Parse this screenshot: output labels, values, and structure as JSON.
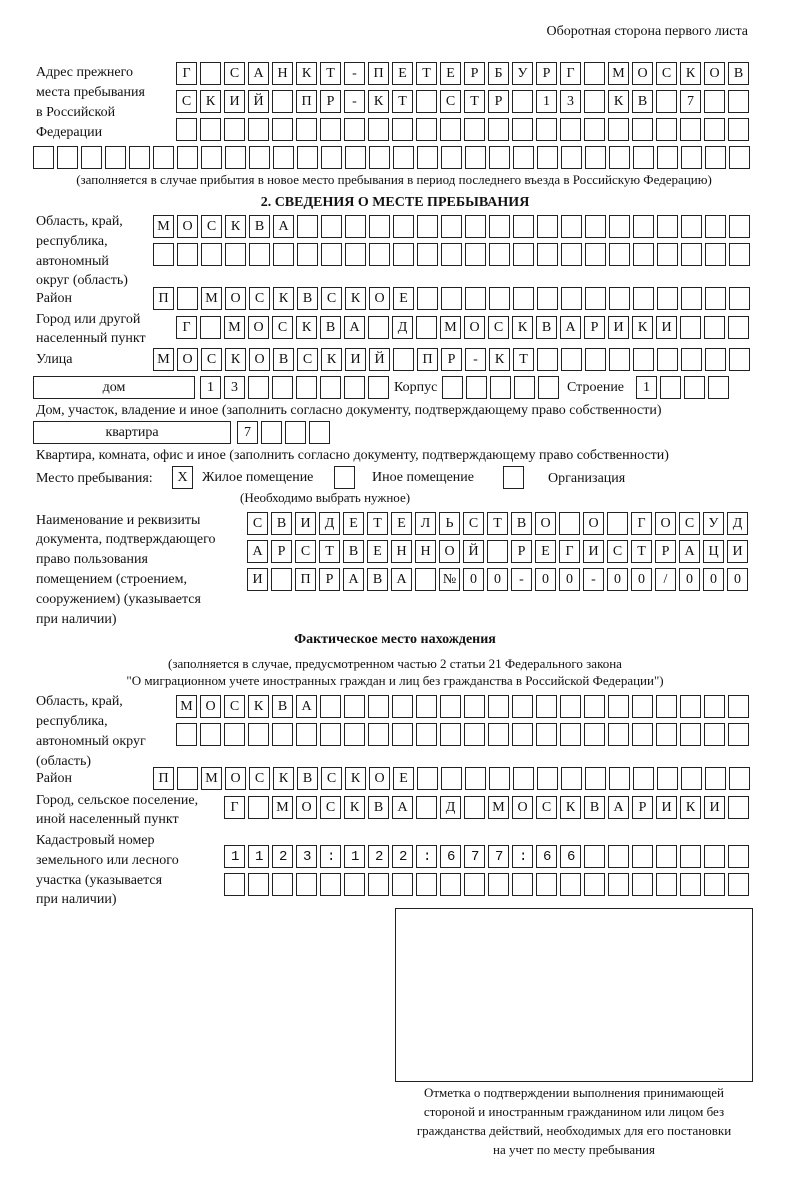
{
  "header": "Оборотная сторона первого листа",
  "prev_address": {
    "label": [
      "Адрес прежнего",
      "места пребывания",
      "в Российской",
      "Федерации"
    ],
    "rows": [
      "Г САНКТ-ПЕТЕРБУРГ МОСКОВ",
      "СКИЙ ПР-КТ СТР 13 КВ 7",
      "",
      ""
    ],
    "note": "(заполняется в случае прибытия в новое место пребывания в период последнего въезда в Российскую Федерацию)"
  },
  "section2": {
    "title": "2. СВЕДЕНИЯ О МЕСТЕ ПРЕБЫВАНИЯ",
    "region_label": [
      "Область, край,",
      "республика,",
      "автономный",
      "округ (область)"
    ],
    "region_rows": [
      "МОСКВА",
      ""
    ],
    "district_label": "Район",
    "district": "П МОСКВСКОЕ",
    "city_label": [
      "Город или другой",
      "населенный пункт"
    ],
    "city": "Г МОСКВА Д МОСКВАРИКИ",
    "street_label": "Улица",
    "street": "МОСКОВСКИЙ ПР-КТ",
    "house_type": "дом",
    "house": "13",
    "korpus_label": "Корпус",
    "korpus": "",
    "building_label": "Строение",
    "building": "1",
    "house_note": "Дом, участок, владение и иное (заполнить согласно документу, подтверждающему право собственности)",
    "apt_type": "квартира",
    "apt": "7",
    "apt_note": "Квартира, комната, офис и иное (заполнить согласно документу, подтверждающему право собственности)",
    "stay_label": "Место пребывания:",
    "stay_options": [
      {
        "label": "Жилое помещение",
        "mark": "X"
      },
      {
        "label": "Иное помещение",
        "mark": ""
      },
      {
        "label": "Организация",
        "mark": ""
      }
    ],
    "stay_note": "(Необходимо выбрать нужное)",
    "doc_label": [
      "Наименование и реквизиты",
      "документа, подтверждающего",
      "право пользования",
      "помещением (строением,",
      "сооружением) (указывается",
      "при наличии)"
    ],
    "doc_rows": [
      "СВИДЕТЕЛЬСТВО О ГОСУД",
      "АРСТВЕННОЙ РЕГИСТРАЦИ",
      "И ПРАВА №00-00-00/000"
    ]
  },
  "actual": {
    "title": "Фактическое место нахождения",
    "note": [
      "(заполняется в случае, предусмотренном частью 2 статьи 21 Федерального закона",
      "\"О миграционном учете иностранных граждан и лиц без гражданства в Российской Федерации\")"
    ],
    "region_label": [
      "Область, край,",
      "республика,",
      "автономный округ",
      "(область)"
    ],
    "region_rows": [
      "МОСКВА",
      ""
    ],
    "district_label": "Район",
    "district": "П МОСКВСКОЕ",
    "city_label": [
      "Город, сельское поселение,",
      "иной населенный пункт"
    ],
    "city": "Г МОСКВА Д МОСКВАРИКИ",
    "cadastre_label": [
      "Кадастровый номер",
      "земельного или лесного",
      "участка (указывается",
      "при наличии)"
    ],
    "cadastre_rows": [
      "1123:122:677:66",
      ""
    ]
  },
  "stamp_caption": [
    "Отметка о подтверждении выполнения принимающей",
    "стороной и иностранным гражданином или лицом без",
    "гражданства действий, необходимых для его постановки",
    "на учет по месту пребывания"
  ]
}
